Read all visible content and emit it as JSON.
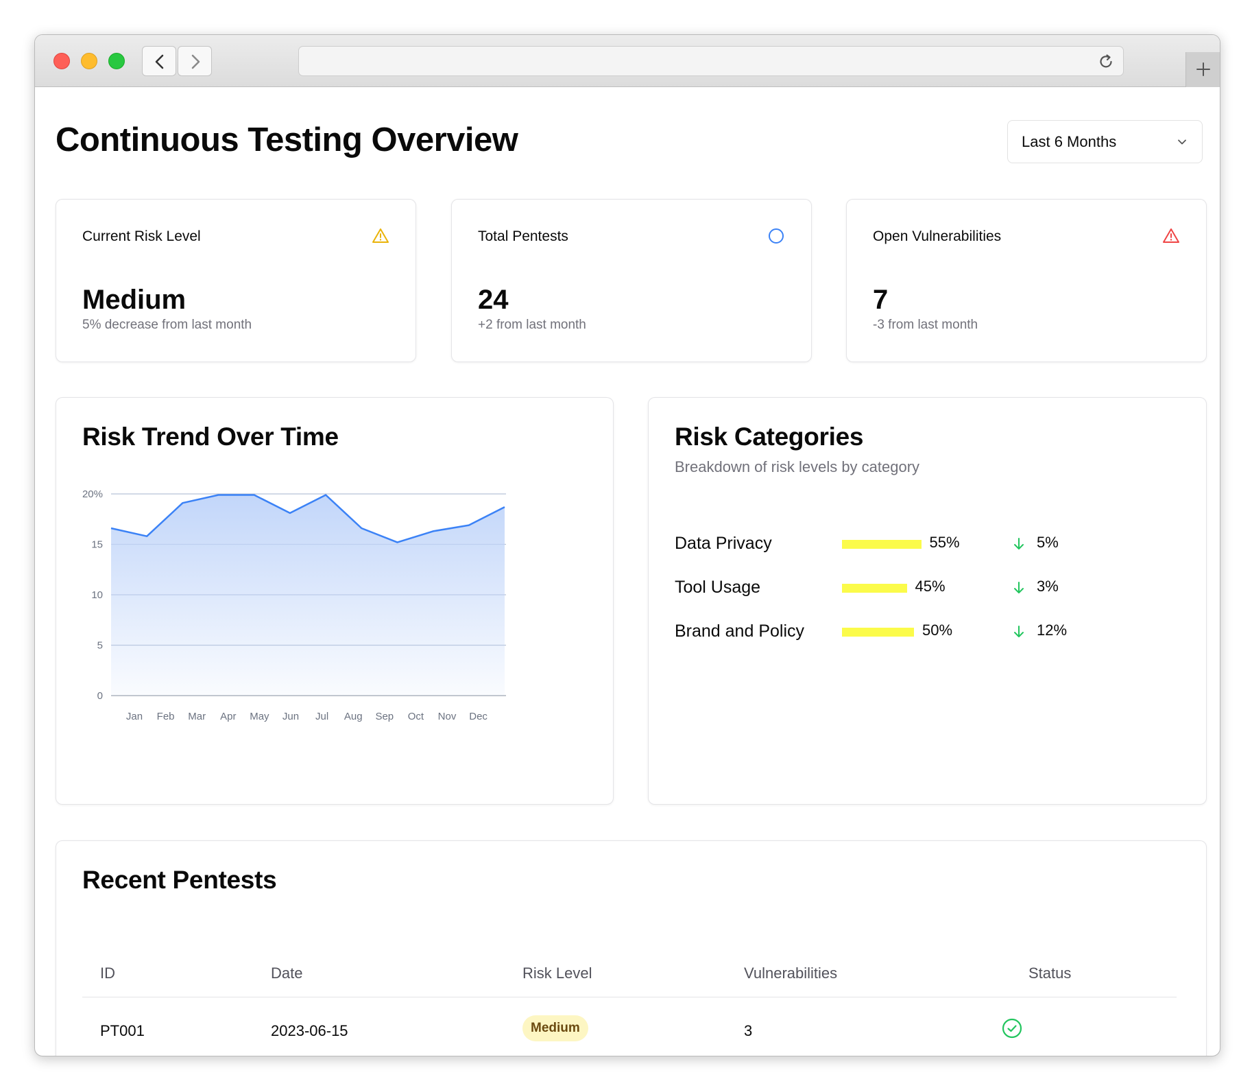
{
  "header": {
    "title": "Continuous Testing Overview",
    "period_select": {
      "value": "Last 6 Months"
    }
  },
  "stats": [
    {
      "label": "Current Risk Level",
      "value": "Medium",
      "sub": "5% decrease from last month",
      "icon": "warning-triangle-icon",
      "icon_color": "#eab308"
    },
    {
      "label": "Total Pentests",
      "value": "24",
      "sub": "+2 from last month",
      "icon": "circle-icon",
      "icon_color": "#3b82f6"
    },
    {
      "label": "Open Vulnerabilities",
      "value": "7",
      "sub": "-3 from last month",
      "icon": "alert-triangle-icon",
      "icon_color": "#ef4444"
    }
  ],
  "trend": {
    "title": "Risk Trend Over Time"
  },
  "chart_data": {
    "type": "area",
    "title": "Risk Trend Over Time",
    "categories": [
      "Jan",
      "Feb",
      "Mar",
      "Apr",
      "May",
      "Jun",
      "Jul",
      "Aug",
      "Sep",
      "Oct",
      "Nov",
      "Dec"
    ],
    "values": [
      16.6,
      15.8,
      19.1,
      19.9,
      19.9,
      18.1,
      19.9,
      16.6,
      15.2,
      16.3,
      16.9,
      18.7
    ],
    "y_ticks": [
      "0",
      "5",
      "10",
      "15",
      "20%"
    ],
    "ylim": [
      0,
      20
    ],
    "grid": true,
    "line_color": "#3b82f6",
    "fill_color": "#bfd4f9"
  },
  "categories": {
    "title": "Risk Categories",
    "subtitle": "Breakdown of risk levels by category",
    "items": [
      {
        "name": "Data Privacy",
        "percent": 55,
        "percent_label": "55%",
        "change": "5%"
      },
      {
        "name": "Tool Usage",
        "percent": 45,
        "percent_label": "45%",
        "change": "3%"
      },
      {
        "name": "Brand and Policy",
        "percent": 50,
        "percent_label": "50%",
        "change": "12%"
      }
    ],
    "bar_color": "#fbfb4a",
    "arrow_color": "#22c55e"
  },
  "recent": {
    "title": "Recent Pentests",
    "columns": [
      "ID",
      "Date",
      "Risk Level",
      "Vulnerabilities",
      "Status"
    ],
    "rows": [
      {
        "id": "PT001",
        "date": "2023-06-15",
        "risk": "Medium",
        "vulns": "3",
        "status_icon": "check-circle-icon"
      }
    ]
  }
}
